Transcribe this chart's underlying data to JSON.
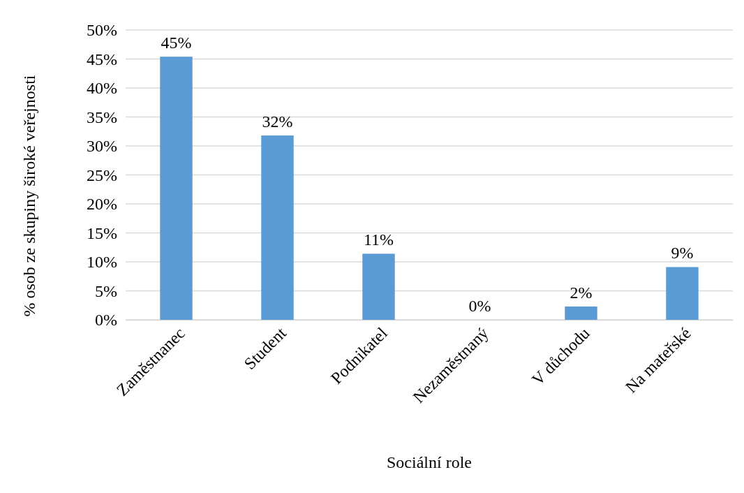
{
  "chart_data": {
    "type": "bar",
    "xlabel": "Sociální role",
    "ylabel": "% osob ze skupiny široké veřejnosti",
    "categories": [
      "Zaměstnanec",
      "Student",
      "Podnikatel",
      "Nezaměstnaný",
      "V důchodu",
      "Na mateřské"
    ],
    "values": [
      45.4,
      31.8,
      11.4,
      0,
      2.3,
      9.1
    ],
    "value_labels": [
      "45%",
      "32%",
      "11%",
      "0%",
      "2%",
      "9%"
    ],
    "color": "#5b9bd5",
    "ylim": [
      0,
      50
    ],
    "yticks": [
      {
        "value": 0,
        "label": "0%"
      },
      {
        "value": 5,
        "label": "5%"
      },
      {
        "value": 10,
        "label": "10%"
      },
      {
        "value": 15,
        "label": "15%"
      },
      {
        "value": 20,
        "label": "20%"
      },
      {
        "value": 25,
        "label": "25%"
      },
      {
        "value": 30,
        "label": "30%"
      },
      {
        "value": 35,
        "label": "35%"
      },
      {
        "value": 40,
        "label": "40%"
      },
      {
        "value": 45,
        "label": "45%"
      },
      {
        "value": 50,
        "label": "50%"
      }
    ],
    "grid": "y"
  }
}
